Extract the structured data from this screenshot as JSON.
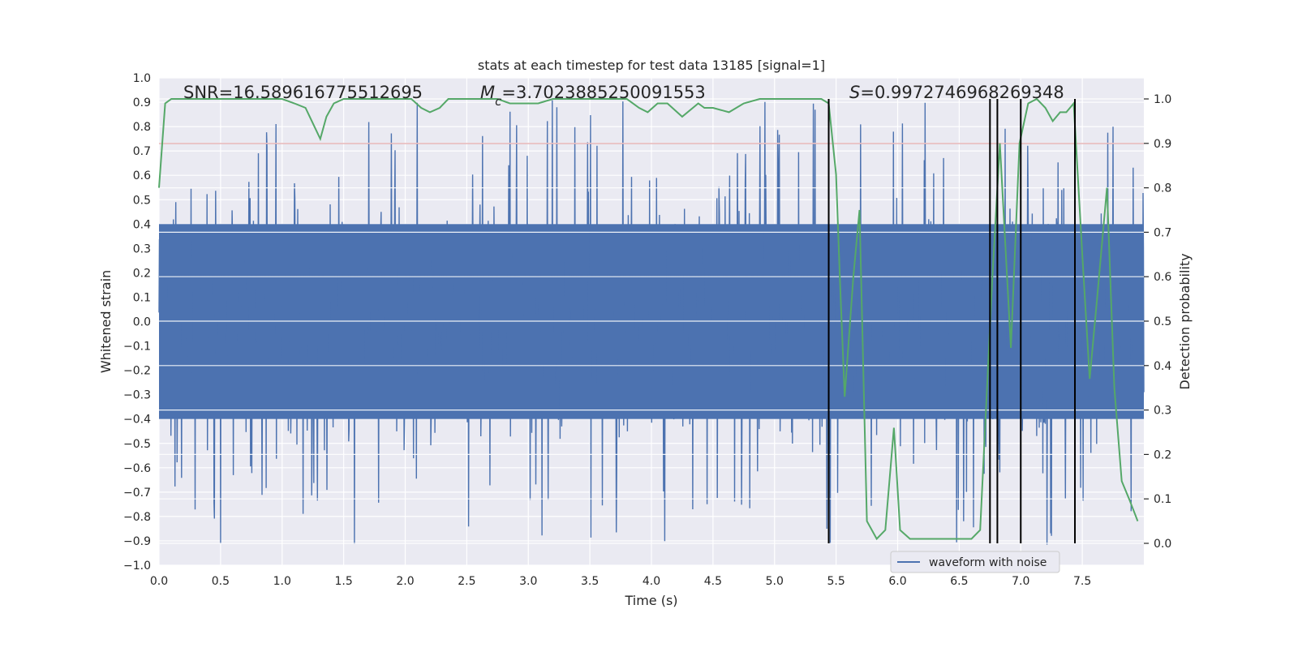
{
  "chart_data": {
    "type": "line",
    "title": "stats at each timestep for test data 13185 [signal=1]",
    "xlabel": "Time (s)",
    "ylabel": "Whitened strain",
    "y2label": "Detection probability",
    "xlim": [
      0.0,
      8.0
    ],
    "ylim": [
      -1.0,
      1.0
    ],
    "y2lim": [
      0.0,
      1.0
    ],
    "xticks": [
      0.0,
      0.5,
      1.0,
      1.5,
      2.0,
      2.5,
      3.0,
      3.5,
      4.0,
      4.5,
      5.0,
      5.5,
      6.0,
      6.5,
      7.0,
      7.5
    ],
    "xtick_labels": [
      "0.0",
      "0.5",
      "1.0",
      "1.5",
      "2.0",
      "2.5",
      "3.0",
      "3.5",
      "4.0",
      "4.5",
      "5.0",
      "5.5",
      "6.0",
      "6.5",
      "7.0",
      "7.5"
    ],
    "yticks": [
      -1.0,
      -0.9,
      -0.8,
      -0.7,
      -0.6,
      -0.5,
      -0.4,
      -0.3,
      -0.2,
      -0.1,
      0.0,
      0.1,
      0.2,
      0.3,
      0.4,
      0.5,
      0.6,
      0.7,
      0.8,
      0.9,
      1.0
    ],
    "ytick_labels": [
      "−1.0",
      "−0.9",
      "−0.8",
      "−0.7",
      "−0.6",
      "−0.5",
      "−0.4",
      "−0.3",
      "−0.2",
      "−0.1",
      "0.0",
      "0.1",
      "0.2",
      "0.3",
      "0.4",
      "0.5",
      "0.6",
      "0.7",
      "0.8",
      "0.9",
      "1.0"
    ],
    "y2ticks": [
      0.0,
      0.1,
      0.2,
      0.3,
      0.4,
      0.5,
      0.6,
      0.7,
      0.8,
      0.9,
      1.0
    ],
    "y2tick_labels": [
      "0.0",
      "0.1",
      "0.2",
      "0.3",
      "0.4",
      "0.5",
      "0.6",
      "0.7",
      "0.8",
      "0.9",
      "1.0"
    ],
    "grid": true,
    "legend_position": "bottom-right",
    "annotations": {
      "snr": "SNR=16.589616775512695",
      "mc_symbol": "M",
      "mc_sub": "c",
      "mc_value": "=3.7023885250091553",
      "s_symbol": "S",
      "s_value": "=0.9972746968269348"
    },
    "series": [
      {
        "name": "waveform with noise",
        "axis": "left",
        "color": "#4c72b0",
        "kind": "noise",
        "core_amplitude": 0.4,
        "peak_amplitude": 0.92,
        "x_range": [
          0.0,
          8.0
        ]
      },
      {
        "axis": "right",
        "color": "#55a868",
        "x": [
          0.0,
          0.05,
          0.1,
          0.2,
          0.3,
          0.5,
          0.7,
          0.9,
          1.0,
          1.1,
          1.19,
          1.31,
          1.36,
          1.42,
          1.5,
          1.6,
          1.8,
          1.9,
          2.05,
          2.13,
          2.2,
          2.28,
          2.35,
          2.45,
          2.6,
          2.75,
          2.85,
          2.98,
          3.08,
          3.2,
          3.4,
          3.6,
          3.8,
          3.9,
          3.97,
          4.05,
          4.13,
          4.25,
          4.38,
          4.43,
          4.5,
          4.63,
          4.75,
          4.88,
          5.0,
          5.13,
          5.25,
          5.38,
          5.44,
          5.5,
          5.53,
          5.57,
          5.64,
          5.69,
          5.75,
          5.83,
          5.9,
          5.97,
          6.02,
          6.1,
          6.2,
          6.3,
          6.4,
          6.5,
          6.6,
          6.67,
          6.77,
          6.83,
          6.92,
          6.99,
          7.06,
          7.13,
          7.2,
          7.26,
          7.32,
          7.37,
          7.43,
          7.5,
          7.56,
          7.62,
          7.7,
          7.76,
          7.82,
          7.88,
          7.95
        ],
        "values": [
          0.8,
          0.99,
          1.0,
          1.0,
          1.0,
          1.0,
          1.0,
          1.0,
          1.0,
          0.99,
          0.98,
          0.91,
          0.96,
          0.99,
          1.0,
          1.0,
          1.0,
          1.0,
          1.0,
          0.98,
          0.97,
          0.98,
          1.0,
          1.0,
          1.0,
          1.0,
          0.99,
          0.99,
          0.99,
          1.0,
          1.0,
          1.0,
          1.0,
          0.98,
          0.97,
          0.99,
          0.99,
          0.96,
          0.99,
          0.98,
          0.98,
          0.97,
          0.99,
          1.0,
          1.0,
          1.0,
          1.0,
          1.0,
          0.99,
          0.83,
          0.6,
          0.33,
          0.6,
          0.75,
          0.05,
          0.01,
          0.03,
          0.26,
          0.03,
          0.01,
          0.01,
          0.01,
          0.01,
          0.01,
          0.01,
          0.03,
          0.6,
          0.9,
          0.44,
          0.9,
          0.99,
          1.0,
          0.98,
          0.95,
          0.97,
          0.97,
          0.99,
          0.65,
          0.37,
          0.55,
          0.8,
          0.35,
          0.14,
          0.1,
          0.05
        ]
      }
    ],
    "threshold": {
      "axis": "right",
      "value": 0.9,
      "color": "#c44e52"
    },
    "vlines": [
      5.44,
      6.75,
      6.81,
      7.0,
      7.44
    ],
    "vline_range": [
      0.0,
      1.0
    ]
  }
}
